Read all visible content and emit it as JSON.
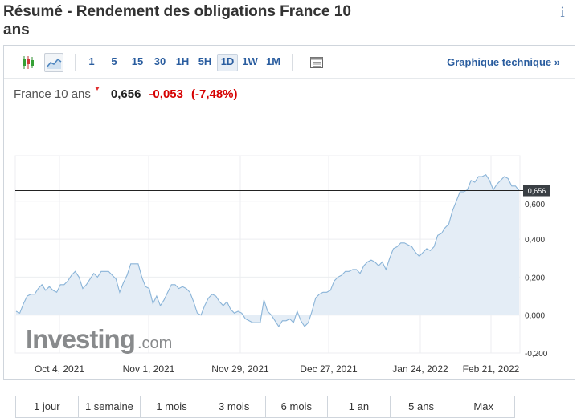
{
  "page_title": "Résumé - Rendement des obligations France 10 ans",
  "info_icon": "i",
  "toolbar": {
    "timeframes": [
      "1",
      "5",
      "15",
      "30",
      "1H",
      "5H",
      "1D",
      "1W",
      "1M"
    ],
    "active_timeframe": "1D",
    "technical_link": "Graphique technique »"
  },
  "quote": {
    "name": "France 10 ans",
    "value": "0,656",
    "change": "-0,053",
    "change_pct": "(-7,48%)"
  },
  "colors": {
    "line": "#8ab4d8",
    "area": "#e4edf6",
    "negative": "#d60000",
    "link": "#2a5d9f"
  },
  "watermark": {
    "brand": "Investing",
    "suffix": ".com"
  },
  "ranges": [
    "1 jour",
    "1 semaine",
    "1 mois",
    "3 mois",
    "6 mois",
    "1 an",
    "5 ans",
    "Max"
  ],
  "chart_data": {
    "type": "area",
    "title": "",
    "xlabel": "",
    "ylabel": "",
    "x_tick_labels": [
      "Oct 4, 2021",
      "Nov 1, 2021",
      "Nov 29, 2021",
      "Dec 27, 2021",
      "Jan 24, 2022",
      "Feb 21, 2022"
    ],
    "y_tick_labels": [
      "0,600",
      "0,400",
      "0,200",
      "0,000",
      "-0,200"
    ],
    "y_ticks": [
      0.6,
      0.4,
      0.2,
      0.0,
      -0.2
    ],
    "ylim": [
      -0.2,
      0.65
    ],
    "current_value": 0.656,
    "current_label": "0,656",
    "grid": true,
    "values": [
      0.02,
      0.01,
      0.06,
      0.1,
      0.11,
      0.11,
      0.14,
      0.16,
      0.13,
      0.15,
      0.13,
      0.12,
      0.16,
      0.16,
      0.18,
      0.21,
      0.23,
      0.2,
      0.14,
      0.16,
      0.19,
      0.22,
      0.2,
      0.23,
      0.23,
      0.23,
      0.21,
      0.19,
      0.12,
      0.17,
      0.21,
      0.27,
      0.27,
      0.27,
      0.2,
      0.15,
      0.14,
      0.06,
      0.1,
      0.05,
      0.08,
      0.12,
      0.16,
      0.16,
      0.14,
      0.15,
      0.14,
      0.12,
      0.07,
      0.01,
      0.0,
      0.05,
      0.09,
      0.11,
      0.1,
      0.07,
      0.05,
      0.07,
      0.03,
      0.01,
      0.02,
      0.01,
      -0.02,
      -0.03,
      -0.04,
      -0.04,
      -0.04,
      0.08,
      0.02,
      0.0,
      -0.03,
      -0.06,
      -0.03,
      -0.03,
      -0.02,
      -0.04,
      0.02,
      -0.03,
      -0.06,
      -0.04,
      0.02,
      0.09,
      0.11,
      0.12,
      0.12,
      0.13,
      0.18,
      0.2,
      0.21,
      0.23,
      0.23,
      0.24,
      0.24,
      0.22,
      0.26,
      0.28,
      0.29,
      0.28,
      0.26,
      0.28,
      0.24,
      0.3,
      0.35,
      0.36,
      0.38,
      0.38,
      0.37,
      0.36,
      0.33,
      0.31,
      0.33,
      0.35,
      0.34,
      0.36,
      0.42,
      0.43,
      0.46,
      0.48,
      0.55,
      0.6,
      0.65,
      0.65,
      0.66,
      0.71,
      0.7,
      0.73,
      0.73,
      0.74,
      0.71,
      0.66,
      0.69,
      0.71,
      0.73,
      0.72,
      0.68,
      0.68,
      0.656
    ]
  }
}
